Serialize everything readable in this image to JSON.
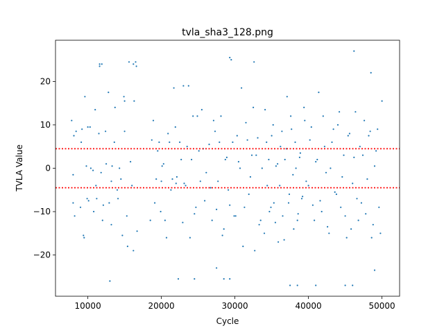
{
  "chart_data": {
    "type": "scatter",
    "title": "tvla_sha3_128.png",
    "xlabel": "Cycle",
    "ylabel": "TVLA Value",
    "xlim": [
      5600,
      52400
    ],
    "ylim": [
      -29.5,
      29.5
    ],
    "xticks": [
      10000,
      20000,
      30000,
      40000,
      50000
    ],
    "xtick_labels": [
      "10000",
      "20000",
      "30000",
      "40000",
      "50000"
    ],
    "yticks": [
      -20,
      -10,
      0,
      10,
      20
    ],
    "ytick_labels": [
      "−20",
      "−10",
      "0",
      "10",
      "20"
    ],
    "grid": false,
    "point_color": "#1f77b4",
    "thresholds": [
      {
        "y": 4.5,
        "color": "#ff0000",
        "style": "dotted"
      },
      {
        "y": -4.5,
        "color": "#ff0000",
        "style": "dotted"
      }
    ],
    "series": [
      {
        "x": [
          7800,
          8100,
          8200,
          9000,
          9200,
          9400,
          9600,
          9800,
          10000,
          10100,
          10400,
          10800,
          11000,
          11200,
          11500,
          11800,
          12100,
          12500,
          12800,
          13200,
          13600,
          14000,
          14300,
          14700,
          15000,
          15300,
          15600,
          16000,
          16300,
          16700,
          8000,
          8400,
          9100,
          9500,
          9900,
          10300,
          10700,
          11100,
          11600,
          12000,
          12400,
          12900,
          13300,
          13700,
          14100,
          14500,
          14900,
          15400,
          15800,
          16200,
          16600,
          18500,
          18900,
          19300,
          19700,
          20100,
          20500,
          20900,
          21300,
          21700,
          22100,
          22500,
          22900,
          23300,
          23700,
          24100,
          24500,
          24900,
          25300,
          25700,
          26100,
          18700,
          19100,
          19500,
          19900,
          20300,
          20700,
          21100,
          21500,
          21900,
          22300,
          22700,
          23100,
          23500,
          23900,
          24300,
          24700,
          25100,
          25500,
          25900,
          26500,
          26900,
          27300,
          27700,
          28100,
          28500,
          28900,
          29300,
          29700,
          30100,
          30500,
          30900,
          31300,
          31700,
          32100,
          32500,
          32900,
          33300,
          33700,
          26700,
          27100,
          27500,
          27900,
          28300,
          28700,
          29100,
          29500,
          29900,
          30300,
          30700,
          31100,
          31500,
          31900,
          32300,
          32700,
          33100,
          33500,
          34000,
          34300,
          34600,
          34900,
          35200,
          35500,
          35800,
          36100,
          36400,
          36700,
          37000,
          37300,
          37600,
          37900,
          38200,
          38500,
          38800,
          39100,
          39400,
          39700,
          34100,
          34400,
          34700,
          35000,
          35300,
          35600,
          35900,
          36200,
          36500,
          36800,
          37100,
          37400,
          37700,
          38000,
          38300,
          38600,
          38900,
          39200,
          39500,
          40000,
          40400,
          40800,
          41200,
          41600,
          42000,
          42400,
          42800,
          43200,
          43600,
          44000,
          44400,
          44800,
          45200,
          45600,
          46000,
          46400,
          46800,
          40200,
          40600,
          41000,
          41400,
          41800,
          42200,
          42600,
          43000,
          43400,
          43800,
          44200,
          44600,
          45000,
          45400,
          45800,
          46200,
          46600,
          47000,
          47200,
          47600,
          48000,
          48400,
          48800,
          49200,
          49600,
          50000,
          47400,
          47800,
          48200,
          48600,
          49000,
          49400,
          49800,
          11600,
          11900,
          13000,
          16200,
          16500,
          29300,
          32600,
          46200,
          48500,
          8000,
          13200,
          15000,
          20000,
          22000,
          23000,
          24500,
          27500,
          28500,
          29300,
          37500,
          38500,
          41000,
          45000,
          46000,
          49000
        ],
        "y": [
          11,
          7.5,
          -11,
          -9,
          9,
          -15.5,
          16.5,
          0.5,
          9.5,
          -7.5,
          0,
          -10,
          13.5,
          -7,
          8,
          -1,
          -8.5,
          1,
          17.5,
          -13,
          6,
          -5,
          0,
          -15.5,
          8.5,
          -11,
          24.5,
          -4,
          15.5,
          -14.5,
          -8,
          8.5,
          6,
          -16,
          -7,
          9.5,
          -0.5,
          -4,
          24,
          -12,
          8.5,
          -8,
          0.5,
          14,
          -7,
          -2.5,
          16.5,
          -18,
          1.5,
          -19,
          23.5,
          -12,
          11,
          -2.5,
          6,
          0.5,
          -12,
          8,
          -5,
          18.5,
          -2,
          6,
          -12.5,
          -4,
          19,
          2,
          -10.5,
          12,
          -3,
          4.5,
          -1,
          6.5,
          -8,
          4,
          -10,
          1,
          -16,
          6,
          -2.5,
          9.5,
          -25.5,
          2,
          -3.5,
          5,
          -16,
          12,
          -9,
          4,
          13.5,
          -7.5,
          5.5,
          -12,
          8.5,
          -3,
          12,
          -14,
          2.5,
          -8.5,
          6,
          -11,
          1.5,
          18.5,
          -9,
          6.5,
          -2,
          14,
          3,
          -13,
          0,
          -4.5,
          11,
          -9.5,
          6,
          -15.5,
          2,
          -5,
          25,
          -11,
          7.5,
          0,
          -18,
          10.5,
          -6,
          3,
          -19,
          7,
          -12,
          -15,
          6,
          2,
          -9,
          10,
          -12.5,
          1,
          -4,
          8.5,
          -16.5,
          4.5,
          -8,
          12,
          -1.5,
          6,
          -12,
          2.5,
          -7,
          14,
          -3,
          13.5,
          -4,
          -10,
          7.5,
          -8,
          0.5,
          -17,
          5,
          -11,
          2,
          16.5,
          -6,
          9,
          -14,
          0,
          -10.5,
          3.5,
          -6.5,
          11,
          -4,
          9.5,
          -12,
          2,
          -7.5,
          12,
          -1,
          -15,
          6,
          -5.5,
          10,
          -9,
          3,
          -16,
          8,
          -3.5,
          13,
          -12,
          6.5,
          -8.5,
          1.5,
          17.5,
          -10,
          5,
          -13.5,
          0,
          9,
          -6,
          13,
          -2,
          -11,
          7.5,
          -14,
          2.5,
          -7,
          5,
          -8,
          11,
          -2.5,
          8.5,
          -13,
          4,
          -9,
          15.5,
          3,
          -10.5,
          7.5,
          -16,
          0.5,
          9,
          -15,
          23.5,
          24,
          -26,
          24,
          24.5,
          25.5,
          24.5,
          27,
          22,
          -1.5,
          -3,
          15.5,
          -3,
          -3.5,
          19,
          -25.5,
          -23,
          -25.5,
          -25.5,
          -27,
          -27,
          -27,
          -27,
          -27,
          -23.5
        ]
      }
    ]
  }
}
